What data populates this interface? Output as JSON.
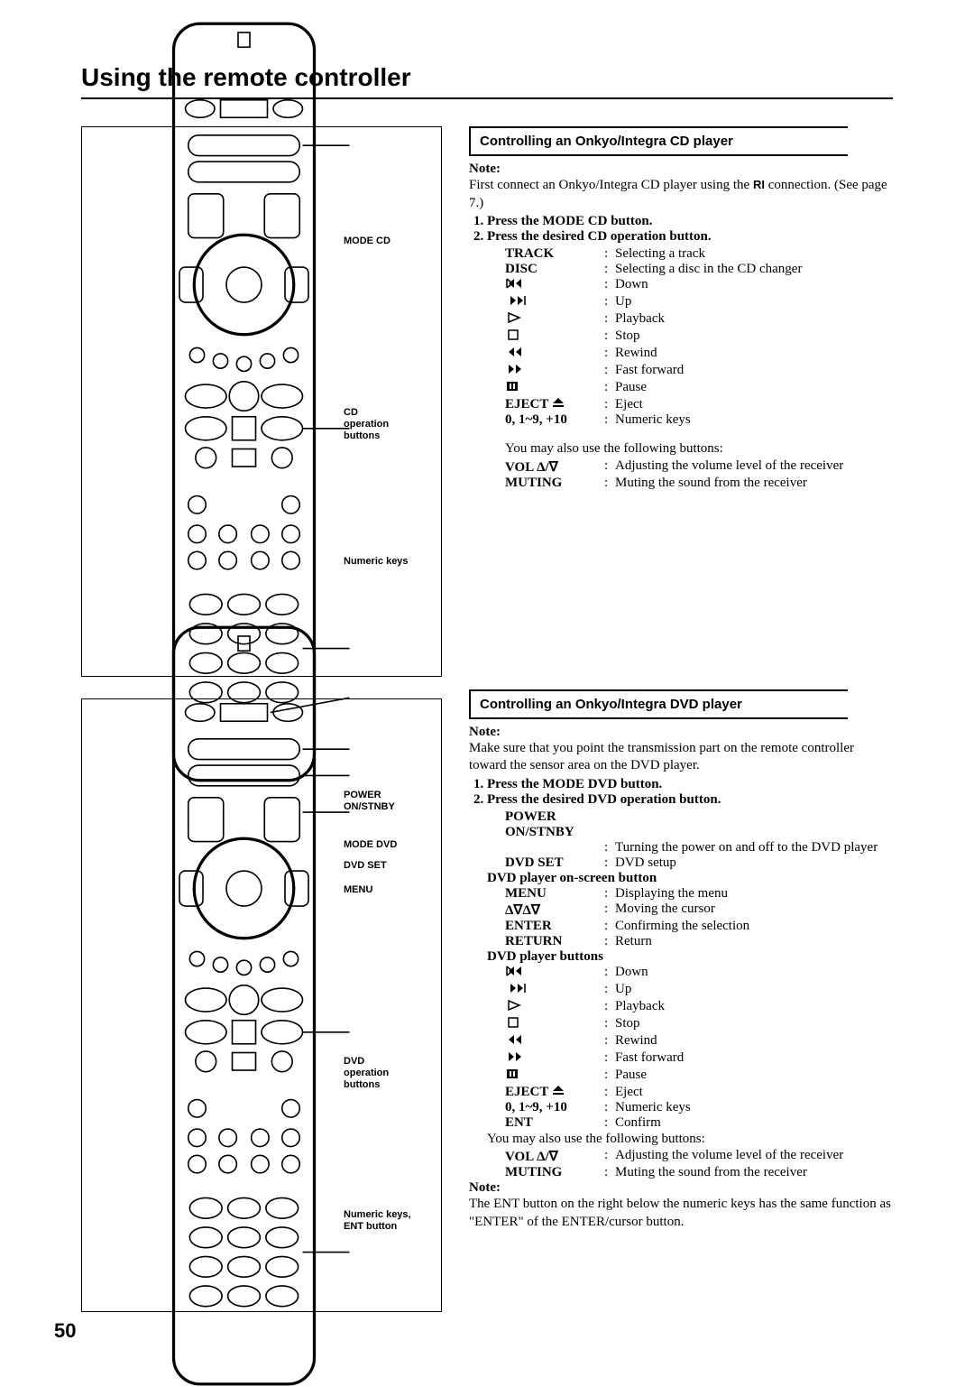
{
  "page": {
    "title": "Using the remote controller",
    "number": "50"
  },
  "cd": {
    "heading": "Controlling an Onkyo/Integra CD player",
    "note_label": "Note:",
    "intro": "First connect an Onkyo/Integra CD player using the ",
    "intro2": " connection. (See page 7.)",
    "steps": [
      "Press the MODE CD button.",
      "Press the desired CD operation button."
    ],
    "defs": [
      {
        "k": "TRACK",
        "v": "Selecting a track"
      },
      {
        "k": "DISC",
        "v": "Selecting a disc in the CD changer"
      },
      {
        "icon": "down",
        "v": "Down"
      },
      {
        "icon": "up",
        "v": "Up"
      },
      {
        "icon": "play",
        "v": "Playback"
      },
      {
        "icon": "stop",
        "v": "Stop"
      },
      {
        "icon": "rewind",
        "v": "Rewind"
      },
      {
        "icon": "ff",
        "v": "Fast forward"
      },
      {
        "icon": "pause",
        "v": "Pause"
      },
      {
        "k": "EJECT ",
        "icon": "eject",
        "v": "Eject"
      },
      {
        "k": "0, 1~9, +10",
        "v": "Numeric keys"
      }
    ],
    "also": "You may also use the following buttons:",
    "also_defs": [
      {
        "k": "VOL Δ/∇",
        "v": "Adjusting the volume level of the receiver"
      },
      {
        "k": "MUTING",
        "v": "Muting the sound from the receiver"
      }
    ],
    "callouts": {
      "mode": "MODE CD",
      "ops": "CD\noperation\nbuttons",
      "num": "Numeric keys"
    }
  },
  "dvd": {
    "heading": "Controlling an Onkyo/Integra DVD player",
    "note_label": "Note:",
    "intro": "Make sure that you point the transmission part on the remote controller toward the sensor area on the DVD player.",
    "steps": [
      "Press the MODE DVD button.",
      "Press the desired DVD operation button."
    ],
    "power_head": "POWER ON/STNBY",
    "power_val": "Turning the power on and off to the DVD player",
    "dvdset_k": "DVD SET",
    "dvdset_v": "DVD setup",
    "onscreen_head": "DVD player on-screen button",
    "onscreen_defs": [
      {
        "k": "MENU",
        "v": "Displaying the menu"
      },
      {
        "k": "Δ∇Δ∇",
        "v": "Moving the cursor"
      },
      {
        "k": "ENTER",
        "v": "Confirming the selection"
      },
      {
        "k": "RETURN",
        "v": "Return"
      }
    ],
    "player_head": "DVD player buttons",
    "player_defs": [
      {
        "icon": "down",
        "v": "Down"
      },
      {
        "icon": "up",
        "v": "Up"
      },
      {
        "icon": "play",
        "v": "Playback"
      },
      {
        "icon": "stop",
        "v": "Stop"
      },
      {
        "icon": "rewind",
        "v": "Rewind"
      },
      {
        "icon": "ff",
        "v": "Fast forward"
      },
      {
        "icon": "pause",
        "v": "Pause"
      },
      {
        "k": "EJECT ",
        "icon": "eject",
        "v": "Eject"
      },
      {
        "k": "0, 1~9, +10",
        "v": "Numeric keys"
      },
      {
        "k": "ENT",
        "v": "Confirm"
      }
    ],
    "also": "You may also use the following buttons:",
    "also_defs": [
      {
        "k": "VOL Δ/∇",
        "v": "Adjusting the volume level of the receiver"
      },
      {
        "k": "MUTING",
        "v": "Muting the sound from the receiver"
      }
    ],
    "note2_label": "Note:",
    "note2": "The ENT button on the right below the numeric keys has the same function as \"ENTER\" of the ENTER/cursor button.",
    "callouts": {
      "power": "POWER\nON/STNBY",
      "mode": "MODE DVD",
      "dvdset": "DVD SET",
      "menu": "MENU",
      "ops": "DVD\noperation\nbuttons",
      "num": "Numeric keys,\nENT button"
    }
  }
}
